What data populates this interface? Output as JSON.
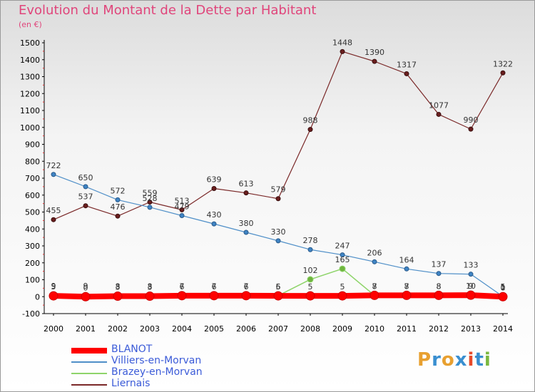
{
  "title": "Evolution du Montant de la Dette par Habitant",
  "unit_label": "(en €)",
  "logo": {
    "text": "Proxiti",
    "letters": [
      {
        "ch": "P",
        "color": "#e8a030"
      },
      {
        "ch": "r",
        "color": "#3a8fd0"
      },
      {
        "ch": "o",
        "color": "#e8a030"
      },
      {
        "ch": "x",
        "color": "#3a8fd0"
      },
      {
        "ch": "i",
        "color": "#e84a2a"
      },
      {
        "ch": "t",
        "color": "#3a8fd0"
      },
      {
        "ch": "i",
        "color": "#7ab840"
      }
    ]
  },
  "chart_data": {
    "type": "line",
    "title": "Evolution du Montant de la Dette par Habitant",
    "ylabel": "(en €)",
    "x": [
      2000,
      2001,
      2002,
      2003,
      2004,
      2005,
      2006,
      2007,
      2008,
      2009,
      2010,
      2011,
      2012,
      2013,
      2014
    ],
    "ylim": [
      -100,
      1500
    ],
    "yticks": [
      -100,
      0,
      100,
      200,
      300,
      400,
      500,
      600,
      700,
      800,
      900,
      1000,
      1100,
      1200,
      1300,
      1400,
      1500
    ],
    "grid": false,
    "legend_position": "bottom-left",
    "series": [
      {
        "name": "BLANOT",
        "color": "#ff0000",
        "values": [
          5,
          0,
          3,
          3,
          6,
          6,
          6,
          5,
          5,
          5,
          8,
          8,
          8,
          9,
          0
        ],
        "labels": [
          "5",
          "0",
          "3",
          "3",
          "6",
          "6",
          "6",
          "5",
          "5",
          "5",
          "8",
          "8",
          "8",
          "9",
          "0"
        ]
      },
      {
        "name": "Villiers-en-Morvan",
        "color": "#4f8fc8",
        "values": [
          722,
          650,
          572,
          528,
          479,
          430,
          380,
          330,
          278,
          247,
          206,
          164,
          137,
          133,
          1
        ],
        "labels": [
          "722",
          "650",
          "572",
          "528",
          "479",
          "430",
          "380",
          "330",
          "278",
          "247",
          "206",
          "164",
          "137",
          "133",
          "1"
        ]
      },
      {
        "name": "Brazey-en-Morvan",
        "color": "#8ed46a",
        "values": [
          9,
          9,
          8,
          8,
          7,
          7,
          7,
          6,
          102,
          165,
          7,
          7,
          8,
          10,
          5
        ],
        "labels": [
          "9",
          "9",
          "8",
          "8",
          "7",
          "7",
          "7",
          "6",
          "102",
          "165",
          "7",
          "7",
          "8",
          "10",
          "5"
        ]
      },
      {
        "name": "Liernais",
        "color": "#7a2828",
        "values": [
          455,
          537,
          476,
          559,
          513,
          639,
          613,
          579,
          988,
          1448,
          1390,
          1317,
          1077,
          990,
          1322
        ],
        "labels": [
          "455",
          "537",
          "476",
          "559",
          "513",
          "639",
          "613",
          "579",
          "988",
          "1448",
          "1390",
          "1317",
          "1077",
          "990",
          "1322"
        ]
      }
    ]
  }
}
